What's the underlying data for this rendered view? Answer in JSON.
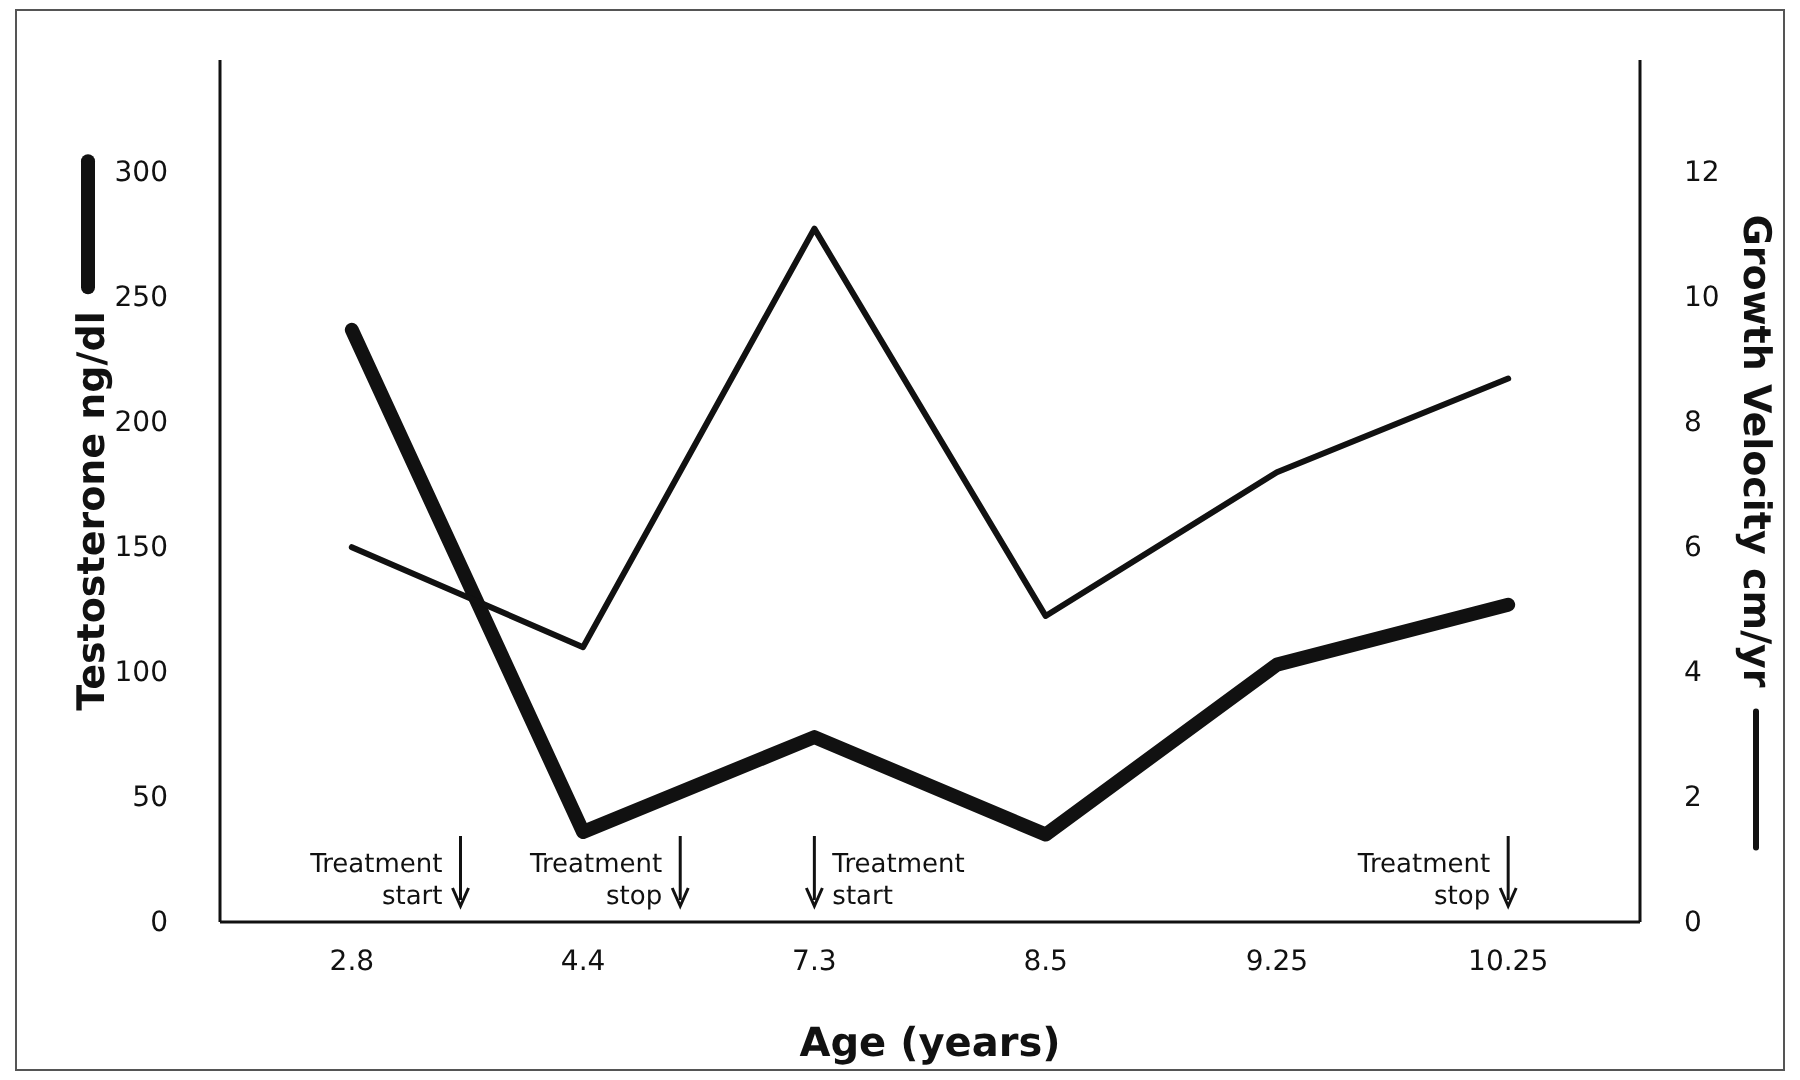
{
  "chart_data": {
    "type": "line",
    "xlabel": "Age (years)",
    "ylabel": "Testosterone ng/dl",
    "y2label": "Growth Velocity cm/yr",
    "categories": [
      "2.8",
      "4.4",
      "7.3",
      "8.5",
      "9.25",
      "10.25"
    ],
    "series": [
      {
        "color": "#111111",
        "values": [
          237,
          36,
          74,
          35,
          103,
          127
        ]
      },
      {
        "color": "#111111",
        "axis": "y2",
        "values": [
          6.0,
          4.4,
          11.1,
          4.9,
          7.2,
          8.7
        ]
      }
    ],
    "ylim": [
      0,
      345
    ],
    "yticks": [
      0,
      50,
      100,
      150,
      200,
      250,
      300
    ],
    "y2lim": [
      0,
      13.8
    ],
    "y2ticks": [
      0,
      2,
      4,
      6,
      8,
      10,
      12
    ],
    "grid": false,
    "marker": "none",
    "line_style": "solid",
    "annotations": [
      "Treatment start",
      "Treatment stop",
      "Treatment start",
      "Treatment stop"
    ]
  }
}
